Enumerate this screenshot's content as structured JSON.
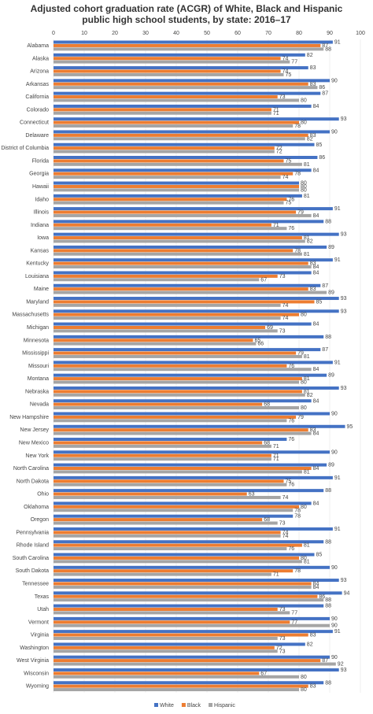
{
  "chart_data": {
    "type": "hbar",
    "title": "Adjusted cohort graduation rate (ACGR) of White, Black and Hispanic public high school students, by state: 2016–17",
    "categories": [
      "Alabama",
      "Alaska",
      "Arizona",
      "Arkansas",
      "California",
      "Colorado",
      "Connecticut",
      "Delaware",
      "District of Columbia",
      "Florida",
      "Georgia",
      "Hawaii",
      "Idaho",
      "Illinois",
      "Indiana",
      "Iowa",
      "Kansas",
      "Kentucky",
      "Louisiana",
      "Maine",
      "Maryland",
      "Massachusetts",
      "Michigan",
      "Minnesota",
      "Mississippi",
      "Missouri",
      "Montana",
      "Nebraska",
      "Nevada",
      "New Hampshire",
      "New Jersey",
      "New Mexico",
      "New York",
      "North Carolina",
      "North Dakota",
      "Ohio",
      "Oklahoma",
      "Oregon",
      "Pennsylvania",
      "Rhode Island",
      "South Carolina",
      "South Dakota",
      "Tennessee",
      "Texas",
      "Utah",
      "Vermont",
      "Virginia",
      "Washington",
      "West Virginia",
      "Wisconsin",
      "Wyoming"
    ],
    "series": [
      {
        "name": "White",
        "color": "#4472c4",
        "values": [
          91,
          82,
          83,
          90,
          87,
          84,
          93,
          90,
          85,
          86,
          84,
          80,
          81,
          91,
          88,
          93,
          89,
          91,
          84,
          87,
          93,
          93,
          84,
          88,
          87,
          91,
          89,
          93,
          84,
          90,
          95,
          76,
          90,
          89,
          91,
          88,
          84,
          78,
          91,
          88,
          85,
          90,
          93,
          94,
          88,
          90,
          91,
          82,
          90,
          93,
          88
        ]
      },
      {
        "name": "Black",
        "color": "#ed7d31",
        "values": [
          87,
          74,
          74,
          83,
          73,
          71,
          80,
          83,
          72,
          75,
          78,
          80,
          76,
          79,
          71,
          81,
          78,
          83,
          73,
          83,
          85,
          80,
          69,
          65,
          79,
          76,
          81,
          81,
          68,
          79,
          83,
          68,
          71,
          84,
          75,
          63,
          80,
          68,
          74,
          81,
          80,
          78,
          84,
          86,
          73,
          77,
          83,
          72,
          87,
          67,
          83
        ]
      },
      {
        "name": "Hispanic",
        "color": "#a5a5a5",
        "values": [
          88,
          77,
          75,
          86,
          80,
          71,
          78,
          82,
          72,
          81,
          74,
          80,
          75,
          84,
          76,
          82,
          81,
          84,
          67,
          89,
          74,
          74,
          73,
          66,
          81,
          84,
          80,
          82,
          80,
          76,
          84,
          71,
          71,
          81,
          76,
          74,
          78,
          73,
          74,
          76,
          81,
          71,
          84,
          88,
          77,
          90,
          73,
          73,
          92,
          80,
          80
        ]
      }
    ],
    "xlim": [
      0,
      100
    ],
    "xticks": [
      0,
      10,
      20,
      30,
      40,
      50,
      60,
      70,
      80,
      90,
      100
    ],
    "grid": true,
    "legend": "bottom"
  }
}
